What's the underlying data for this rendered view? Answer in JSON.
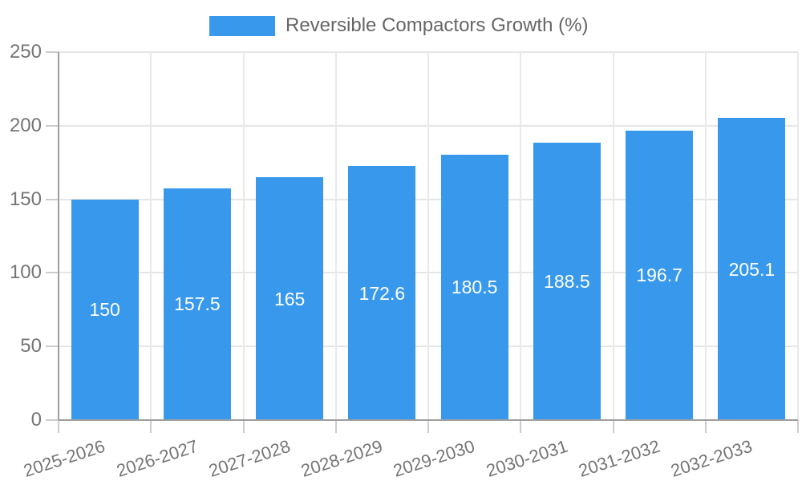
{
  "page": {
    "background": "#ffffff"
  },
  "legend": {
    "position": "top",
    "label": "Reversible Compactors Growth (%)",
    "swatch_color": "#3899ec"
  },
  "chart_data": {
    "type": "bar",
    "title": "Reversible Compactors Growth (%)",
    "series_name": "Reversible Compactors Growth (%)",
    "categories": [
      "2025-2026",
      "2026-2027",
      "2027-2028",
      "2028-2029",
      "2029-2030",
      "2030-2031",
      "2031-2032",
      "2032-2033"
    ],
    "values": [
      150,
      157.5,
      165,
      172.6,
      180.5,
      188.5,
      196.7,
      205.1
    ],
    "value_labels": [
      "150",
      "157.5",
      "165",
      "172.6",
      "180.5",
      "188.5",
      "196.7",
      "205.1"
    ],
    "xlabel": "",
    "ylabel": "",
    "ylim": [
      0,
      250
    ],
    "yticks": [
      0,
      50,
      100,
      150,
      200,
      250
    ],
    "grid": true,
    "legend_position": "top",
    "x_label_rotation_deg": -18,
    "colors": {
      "bar": "#3899ec",
      "axis_line": "#9e9e9e",
      "gridline": "#e6e6e6",
      "tick": "#cccccc",
      "tick_label": "#757575",
      "legend_text": "#666666",
      "value_label": "#ffffff"
    }
  }
}
